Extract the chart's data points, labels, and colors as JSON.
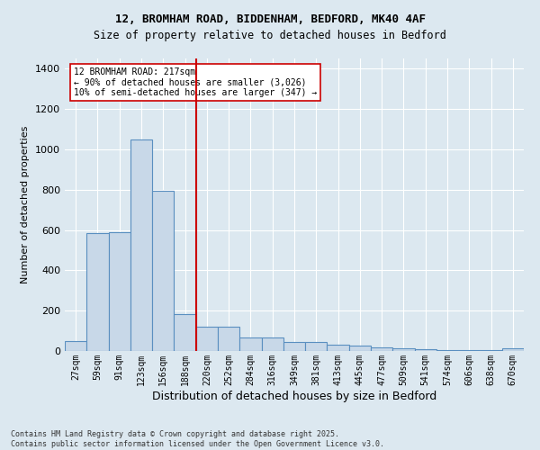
{
  "title_line1": "12, BROMHAM ROAD, BIDDENHAM, BEDFORD, MK40 4AF",
  "title_line2": "Size of property relative to detached houses in Bedford",
  "xlabel": "Distribution of detached houses by size in Bedford",
  "ylabel": "Number of detached properties",
  "bars": [
    {
      "label": "27sqm",
      "value": 50
    },
    {
      "label": "59sqm",
      "value": 585
    },
    {
      "label": "91sqm",
      "value": 590
    },
    {
      "label": "123sqm",
      "value": 1050
    },
    {
      "label": "156sqm",
      "value": 795
    },
    {
      "label": "188sqm",
      "value": 185
    },
    {
      "label": "220sqm",
      "value": 120
    },
    {
      "label": "252sqm",
      "value": 120
    },
    {
      "label": "284sqm",
      "value": 65
    },
    {
      "label": "316sqm",
      "value": 65
    },
    {
      "label": "349sqm",
      "value": 45
    },
    {
      "label": "381sqm",
      "value": 45
    },
    {
      "label": "413sqm",
      "value": 30
    },
    {
      "label": "445sqm",
      "value": 25
    },
    {
      "label": "477sqm",
      "value": 20
    },
    {
      "label": "509sqm",
      "value": 15
    },
    {
      "label": "541sqm",
      "value": 10
    },
    {
      "label": "574sqm",
      "value": 5
    },
    {
      "label": "606sqm",
      "value": 3
    },
    {
      "label": "638sqm",
      "value": 3
    },
    {
      "label": "670sqm",
      "value": 13
    }
  ],
  "vline_after_idx": 4,
  "bar_color": "#c8d8e8",
  "bar_edge_color": "#5a8fc0",
  "vline_color": "#cc0000",
  "annotation_text": "12 BROMHAM ROAD: 217sqm\n← 90% of detached houses are smaller (3,026)\n10% of semi-detached houses are larger (347) →",
  "annotation_box_color": "#ffffff",
  "annotation_box_edge": "#cc0000",
  "background_color": "#dce8f0",
  "grid_color": "#ffffff",
  "ylim": [
    0,
    1450
  ],
  "yticks": [
    0,
    200,
    400,
    600,
    800,
    1000,
    1200,
    1400
  ],
  "footer_line1": "Contains HM Land Registry data © Crown copyright and database right 2025.",
  "footer_line2": "Contains public sector information licensed under the Open Government Licence v3.0."
}
